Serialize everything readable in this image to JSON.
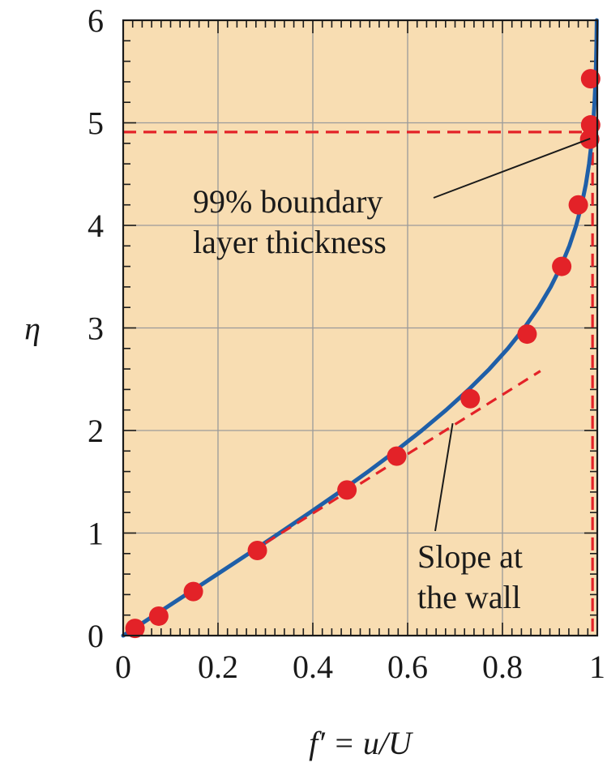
{
  "chart_data": {
    "type": "line",
    "xlabel": "f′ = u/U",
    "ylabel": "η",
    "xlim": [
      0,
      1
    ],
    "ylim": [
      0,
      6
    ],
    "x_ticks": [
      "0",
      "0.2",
      "0.4",
      "0.6",
      "0.8",
      "1"
    ],
    "y_ticks": [
      "0",
      "1",
      "2",
      "3",
      "4",
      "5",
      "6"
    ],
    "grid": true,
    "background_color": "#F8DDB2",
    "series": [
      {
        "kind": "curve",
        "color": "#1F5FA8",
        "x": [
          0,
          0.0664,
          0.1328,
          0.1989,
          0.2647,
          0.3298,
          0.3938,
          0.4563,
          0.5168,
          0.5748,
          0.6298,
          0.6813,
          0.729,
          0.7725,
          0.8115,
          0.846,
          0.8761,
          0.9018,
          0.9233,
          0.9411,
          0.9555,
          0.967,
          0.9759,
          0.9827,
          0.9878,
          0.9915,
          0.9942,
          0.9962,
          0.9975,
          0.9984,
          0.999
        ],
        "y": [
          0,
          0.2,
          0.4,
          0.6,
          0.8,
          1.0,
          1.2,
          1.4,
          1.6,
          1.8,
          2.0,
          2.2,
          2.4,
          2.6,
          2.8,
          3.0,
          3.2,
          3.4,
          3.6,
          3.8,
          4.0,
          4.2,
          4.4,
          4.6,
          4.8,
          5.0,
          5.2,
          5.4,
          5.6,
          5.8,
          6.0
        ]
      },
      {
        "kind": "points",
        "color": "#E32228",
        "x": [
          0.025,
          0.075,
          0.148,
          0.283,
          0.472,
          0.577,
          0.732,
          0.852,
          0.925,
          0.96,
          0.984,
          0.986,
          0.986
        ],
        "y": [
          0.07,
          0.19,
          0.43,
          0.83,
          1.42,
          1.75,
          2.31,
          2.94,
          3.6,
          4.2,
          4.84,
          4.98,
          5.43
        ]
      },
      {
        "kind": "dashed",
        "color": "#E32228",
        "x": [
          0.3,
          0.88
        ],
        "y": [
          0.903,
          2.58
        ]
      }
    ],
    "reference_lines": {
      "color": "#E32228",
      "horizontal_eta": 4.91,
      "vertical_f": 0.99
    },
    "annotations": [
      {
        "lines": [
          "99% boundary",
          "layer thickness"
        ],
        "arrow_to": [
          0.985,
          4.91
        ]
      },
      {
        "lines": [
          "Slope at",
          "the wall"
        ],
        "arrow_to": [
          0.695,
          2.07
        ]
      }
    ]
  }
}
